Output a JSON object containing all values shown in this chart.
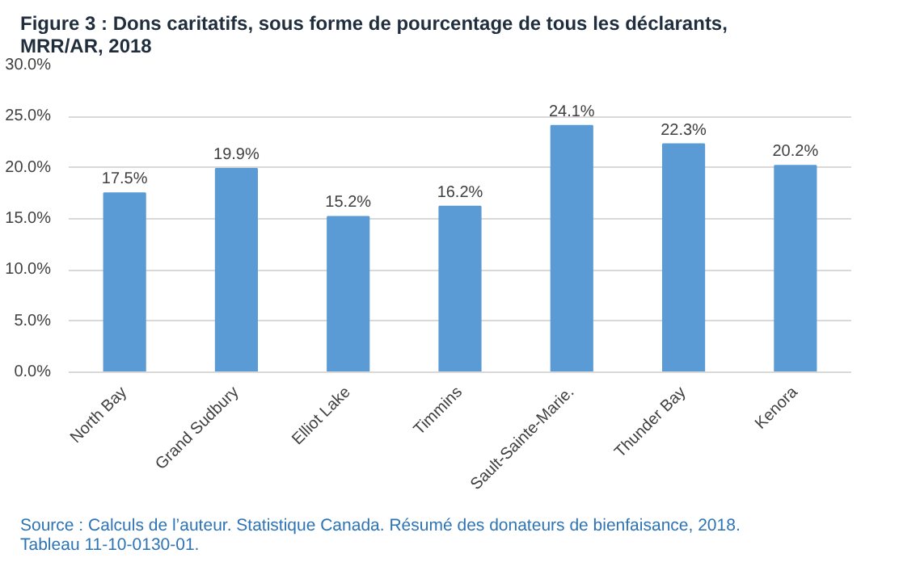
{
  "chart_data": {
    "type": "bar",
    "title": "Figure 3 : Dons caritatifs, sous forme de pourcentage de tous les déclarants, MRR/AR, 2018",
    "categories": [
      "North Bay",
      "Grand Sudbury",
      "Elliot Lake",
      "Timmins",
      "Sault-Sainte-Marie.",
      "Thunder Bay",
      "Kenora"
    ],
    "values": [
      17.5,
      19.9,
      15.2,
      16.2,
      24.1,
      22.3,
      20.2
    ],
    "value_labels": [
      "17.5%",
      "19.9%",
      "15.2%",
      "16.2%",
      "24.1%",
      "22.3%",
      "20.2%"
    ],
    "color": "#5b9bd5",
    "ylim": [
      0,
      30
    ],
    "yticks": [
      {
        "value": 0,
        "label": "0.0%"
      },
      {
        "value": 5,
        "label": "5.0%"
      },
      {
        "value": 10,
        "label": "10.0%"
      },
      {
        "value": 15,
        "label": "15.0%"
      },
      {
        "value": 20,
        "label": "20.0%"
      },
      {
        "value": 25,
        "label": "25.0%"
      },
      {
        "value": 30,
        "label": "30.0%"
      }
    ],
    "grid": "y",
    "annotations": [
      "Source : Calculs de l’auteur. Statistique Canada. Résumé des donateurs de bienfaisance, 2018. Tableau 11-10-0130-01."
    ]
  }
}
